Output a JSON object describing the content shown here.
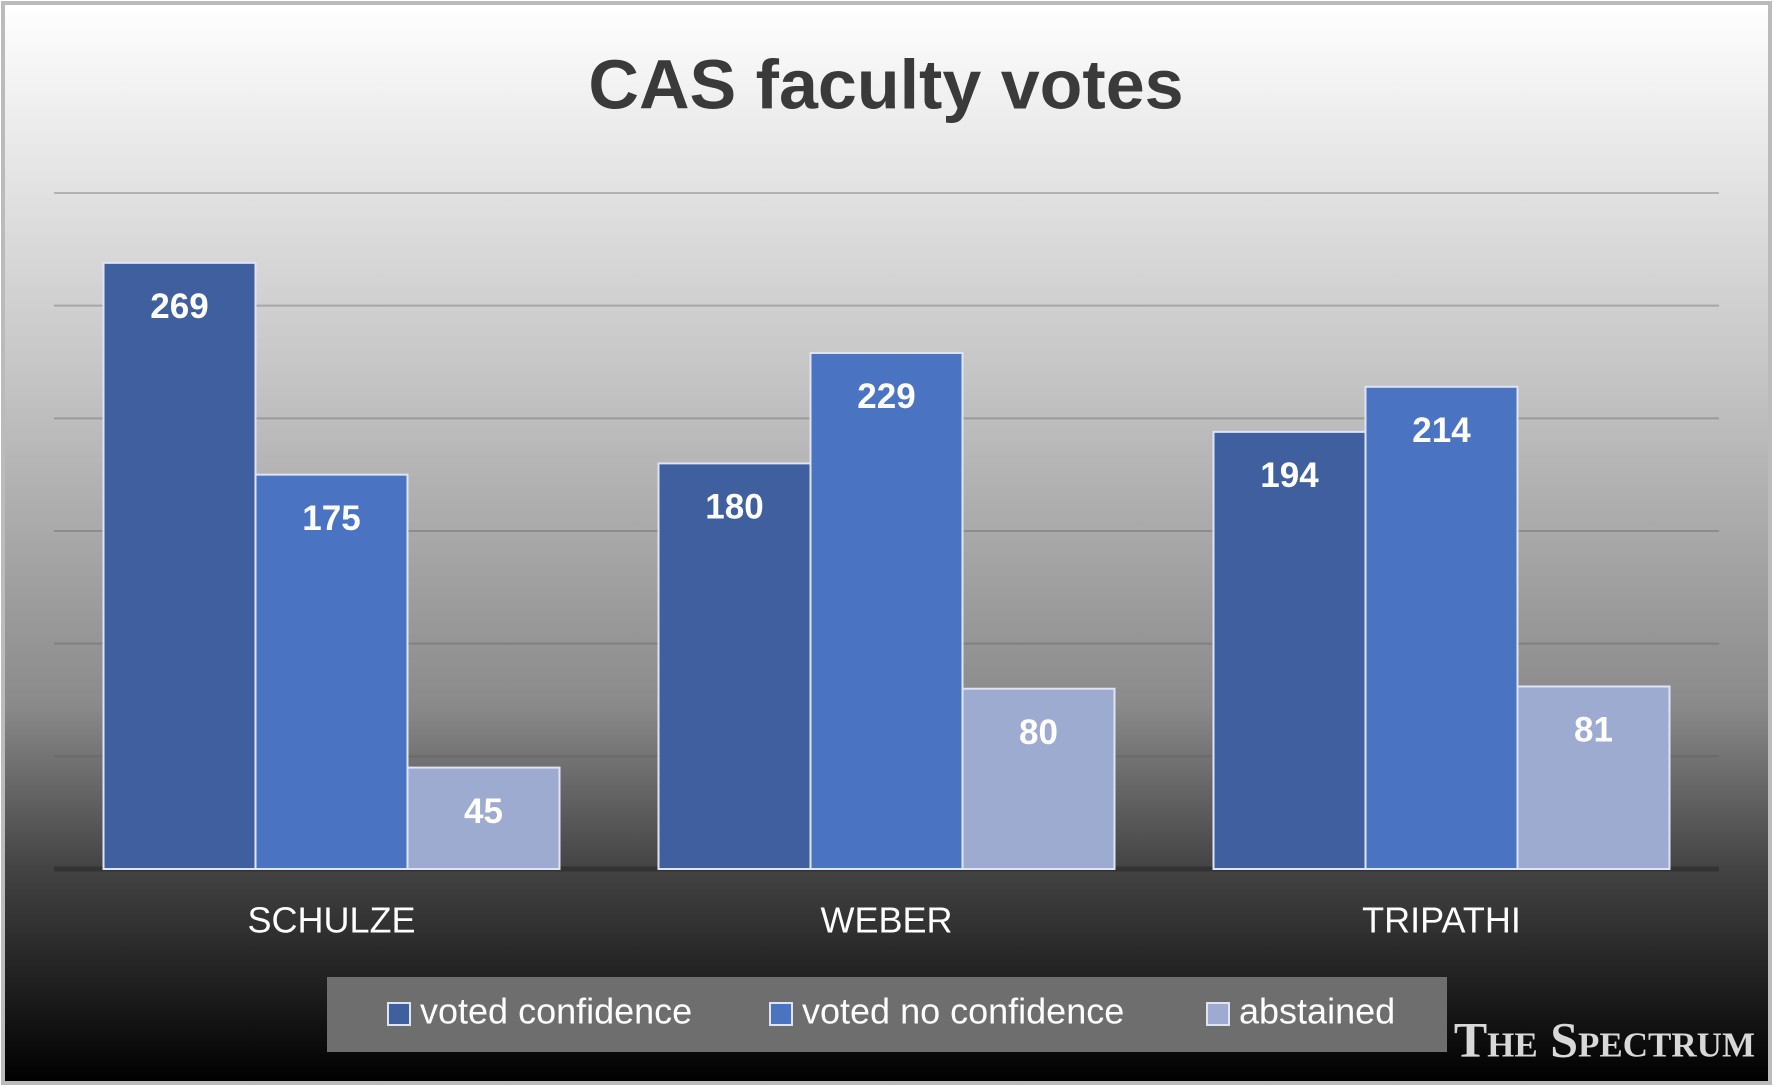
{
  "chart_data": {
    "type": "bar",
    "title": "CAS faculty votes",
    "categories": [
      "SCHULZE",
      "WEBER",
      "TRIPATHI"
    ],
    "series": [
      {
        "name": "voted confidence",
        "color": "#3f5f9e",
        "values": [
          269,
          180,
          194
        ]
      },
      {
        "name": "voted no confidence",
        "color": "#4a73c2",
        "values": [
          175,
          229,
          214
        ]
      },
      {
        "name": "abstained",
        "color": "#9eabd0",
        "values": [
          45,
          80,
          81
        ]
      }
    ],
    "ylim": [
      0,
      300
    ],
    "yticks": [
      0,
      50,
      100,
      150,
      200,
      250,
      300
    ],
    "grid": true,
    "legend": "bottom",
    "watermark": "The Spectrum"
  }
}
